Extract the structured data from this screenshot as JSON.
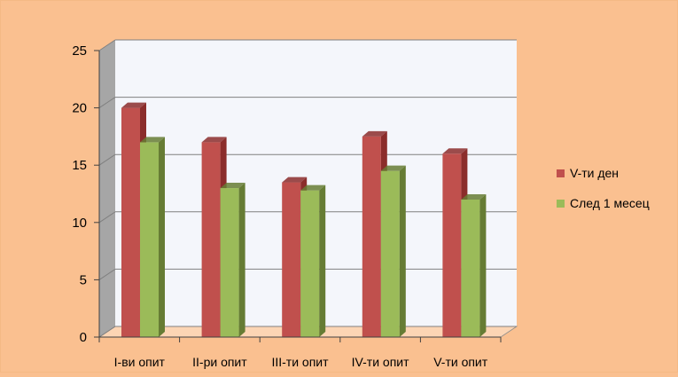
{
  "chart_data": {
    "type": "bar",
    "three_d": true,
    "categories": [
      "I-ви опит",
      "II-ри опит",
      "III-ти опит",
      "IV-ти опит",
      "V-ти опит"
    ],
    "series": [
      {
        "name": "V-ти  ден",
        "values": [
          20,
          17,
          13.5,
          17.5,
          16
        ],
        "color": "#c0504d",
        "side_color": "#8b2d2b"
      },
      {
        "name": "След  1 месец",
        "values": [
          17,
          13,
          12.8,
          14.5,
          12
        ],
        "color": "#9bbb59",
        "side_color": "#667c34"
      }
    ],
    "ylim": [
      0,
      25
    ],
    "yticks": [
      "0",
      "5",
      "10",
      "15",
      "20",
      "25"
    ],
    "grid": true,
    "legend": "right",
    "colors": {
      "background": "#fac090",
      "frame": "#f5b985",
      "plot_wall": "#f4f6fb",
      "side_wall": "#a6a6a6",
      "floor": "#fcd5b4",
      "gridline": "#808080",
      "text": "#000000"
    }
  }
}
